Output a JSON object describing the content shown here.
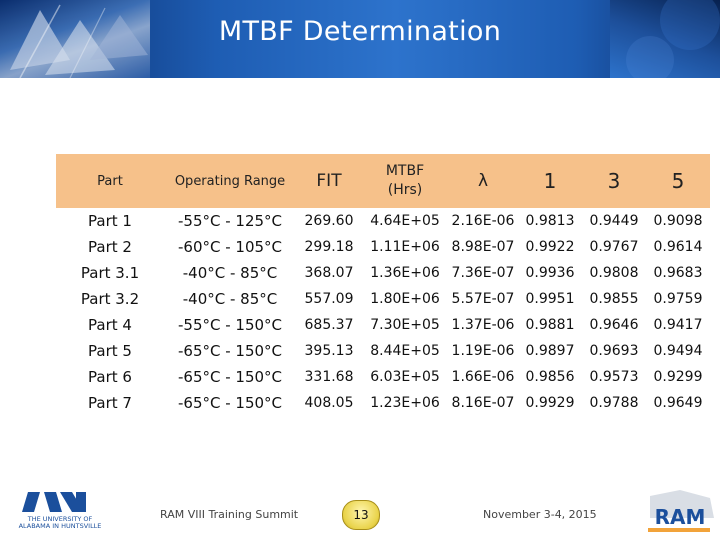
{
  "slide": {
    "title": "MTBF Determination"
  },
  "table": {
    "headers": {
      "part": "Part",
      "range": "Operating Range",
      "fit": "FIT",
      "mtbf_line1": "MTBF",
      "mtbf_line2": "(Hrs)",
      "lambda": "λ",
      "y1": "1",
      "y3": "3",
      "y5": "5"
    },
    "rows": [
      {
        "part": "Part 1",
        "range": "-55°C - 125°C",
        "fit": "269.60",
        "mtbf": "4.64E+05",
        "lambda": "2.16E-06",
        "y1": "0.9813",
        "y3": "0.9449",
        "y5": "0.9098"
      },
      {
        "part": "Part 2",
        "range": "-60°C - 105°C",
        "fit": "299.18",
        "mtbf": "1.11E+06",
        "lambda": "8.98E-07",
        "y1": "0.9922",
        "y3": "0.9767",
        "y5": "0.9614"
      },
      {
        "part": "Part 3.1",
        "range": "-40°C - 85°C",
        "fit": "368.07",
        "mtbf": "1.36E+06",
        "lambda": "7.36E-07",
        "y1": "0.9936",
        "y3": "0.9808",
        "y5": "0.9683"
      },
      {
        "part": "Part 3.2",
        "range": "-40°C - 85°C",
        "fit": "557.09",
        "mtbf": "1.80E+06",
        "lambda": "5.57E-07",
        "y1": "0.9951",
        "y3": "0.9855",
        "y5": "0.9759"
      },
      {
        "part": "Part 4",
        "range": "-55°C - 150°C",
        "fit": "685.37",
        "mtbf": "7.30E+05",
        "lambda": "1.37E-06",
        "y1": "0.9881",
        "y3": "0.9646",
        "y5": "0.9417"
      },
      {
        "part": "Part 5",
        "range": "-65°C - 150°C",
        "fit": "395.13",
        "mtbf": "8.44E+05",
        "lambda": "1.19E-06",
        "y1": "0.9897",
        "y3": "0.9693",
        "y5": "0.9494"
      },
      {
        "part": "Part 6",
        "range": "-65°C - 150°C",
        "fit": "331.68",
        "mtbf": "6.03E+05",
        "lambda": "1.66E-06",
        "y1": "0.9856",
        "y3": "0.9573",
        "y5": "0.9299"
      },
      {
        "part": "Part 7",
        "range": "-65°C - 150°C",
        "fit": "408.05",
        "mtbf": "1.23E+06",
        "lambda": "8.16E-07",
        "y1": "0.9929",
        "y3": "0.9788",
        "y5": "0.9649"
      }
    ]
  },
  "footer": {
    "left_logo_line1": "THE UNIVERSITY OF",
    "left_logo_line2": "ALABAMA IN HUNTSVILLE",
    "event": "RAM VIII Training Summit",
    "page_number": "13",
    "date": "November 3-4, 2015",
    "right_logo": "RAM"
  },
  "colors": {
    "header_blue": "#1e5db3",
    "table_header_fill": "#f6c18a",
    "page_badge": "#e9d34a"
  }
}
